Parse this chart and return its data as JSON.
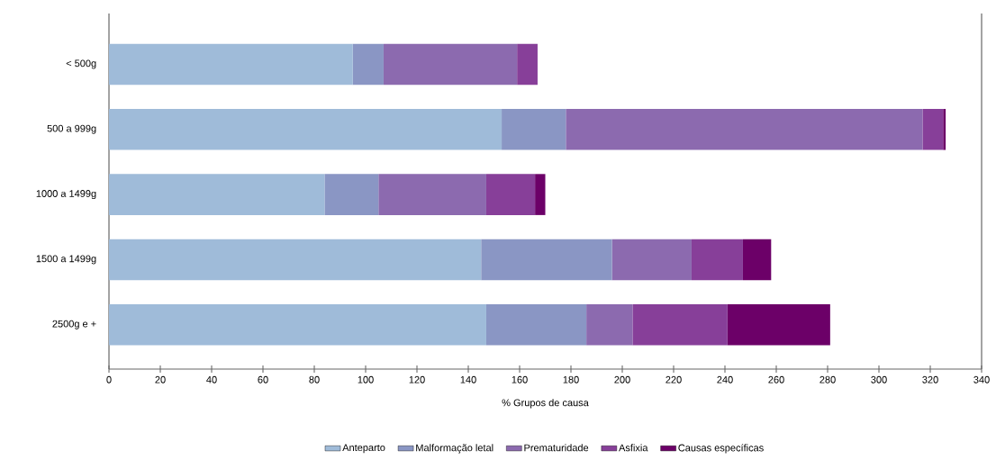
{
  "chart_data": {
    "type": "bar",
    "orientation": "horizontal",
    "stacked": true,
    "xlabel": "% Grupos de causa",
    "categories": [
      "< 500g",
      "500 a 999g",
      "1000 a 1499g",
      "1500 a 1499g",
      "2500g e +"
    ],
    "series": [
      {
        "name": "Anteparto",
        "color": "#9fbbd9",
        "values": [
          95,
          153,
          84,
          145,
          147
        ]
      },
      {
        "name": "Malformação letal",
        "color": "#8a96c4",
        "values": [
          12,
          25,
          21,
          51,
          39
        ]
      },
      {
        "name": "Prematuridade",
        "color": "#8c6aaf",
        "values": [
          52,
          139,
          42,
          31,
          18
        ]
      },
      {
        "name": "Asfixia",
        "color": "#873f99",
        "values": [
          8,
          8,
          19,
          20,
          37
        ]
      },
      {
        "name": "Causas específicas",
        "color": "#6c0068",
        "values": [
          0,
          1,
          4,
          11,
          40
        ]
      }
    ],
    "xlim": [
      0,
      340
    ],
    "xticks": [
      0,
      20,
      40,
      60,
      80,
      100,
      120,
      140,
      160,
      180,
      200,
      220,
      240,
      260,
      280,
      300,
      320,
      340
    ],
    "legend": "bottom",
    "grid": false
  }
}
